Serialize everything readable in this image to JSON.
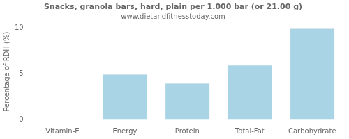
{
  "chart_data": {
    "type": "bar",
    "title": "Snacks, granola bars, hard, plain per 1.000 bar (or 21.00 g)",
    "subtitle": "www.dietandfitnesstoday.com",
    "categories": [
      "Vitamin-E",
      "Energy",
      "Protein",
      "Total-Fat",
      "Carbohydrate"
    ],
    "values": [
      0,
      5,
      4,
      6,
      10
    ],
    "color": "#a8d4e6",
    "ylabel": "Percentage of RDH (%)",
    "ylim": [
      0,
      10.5
    ],
    "yticks": [
      0,
      5,
      10
    ],
    "grid": true
  }
}
